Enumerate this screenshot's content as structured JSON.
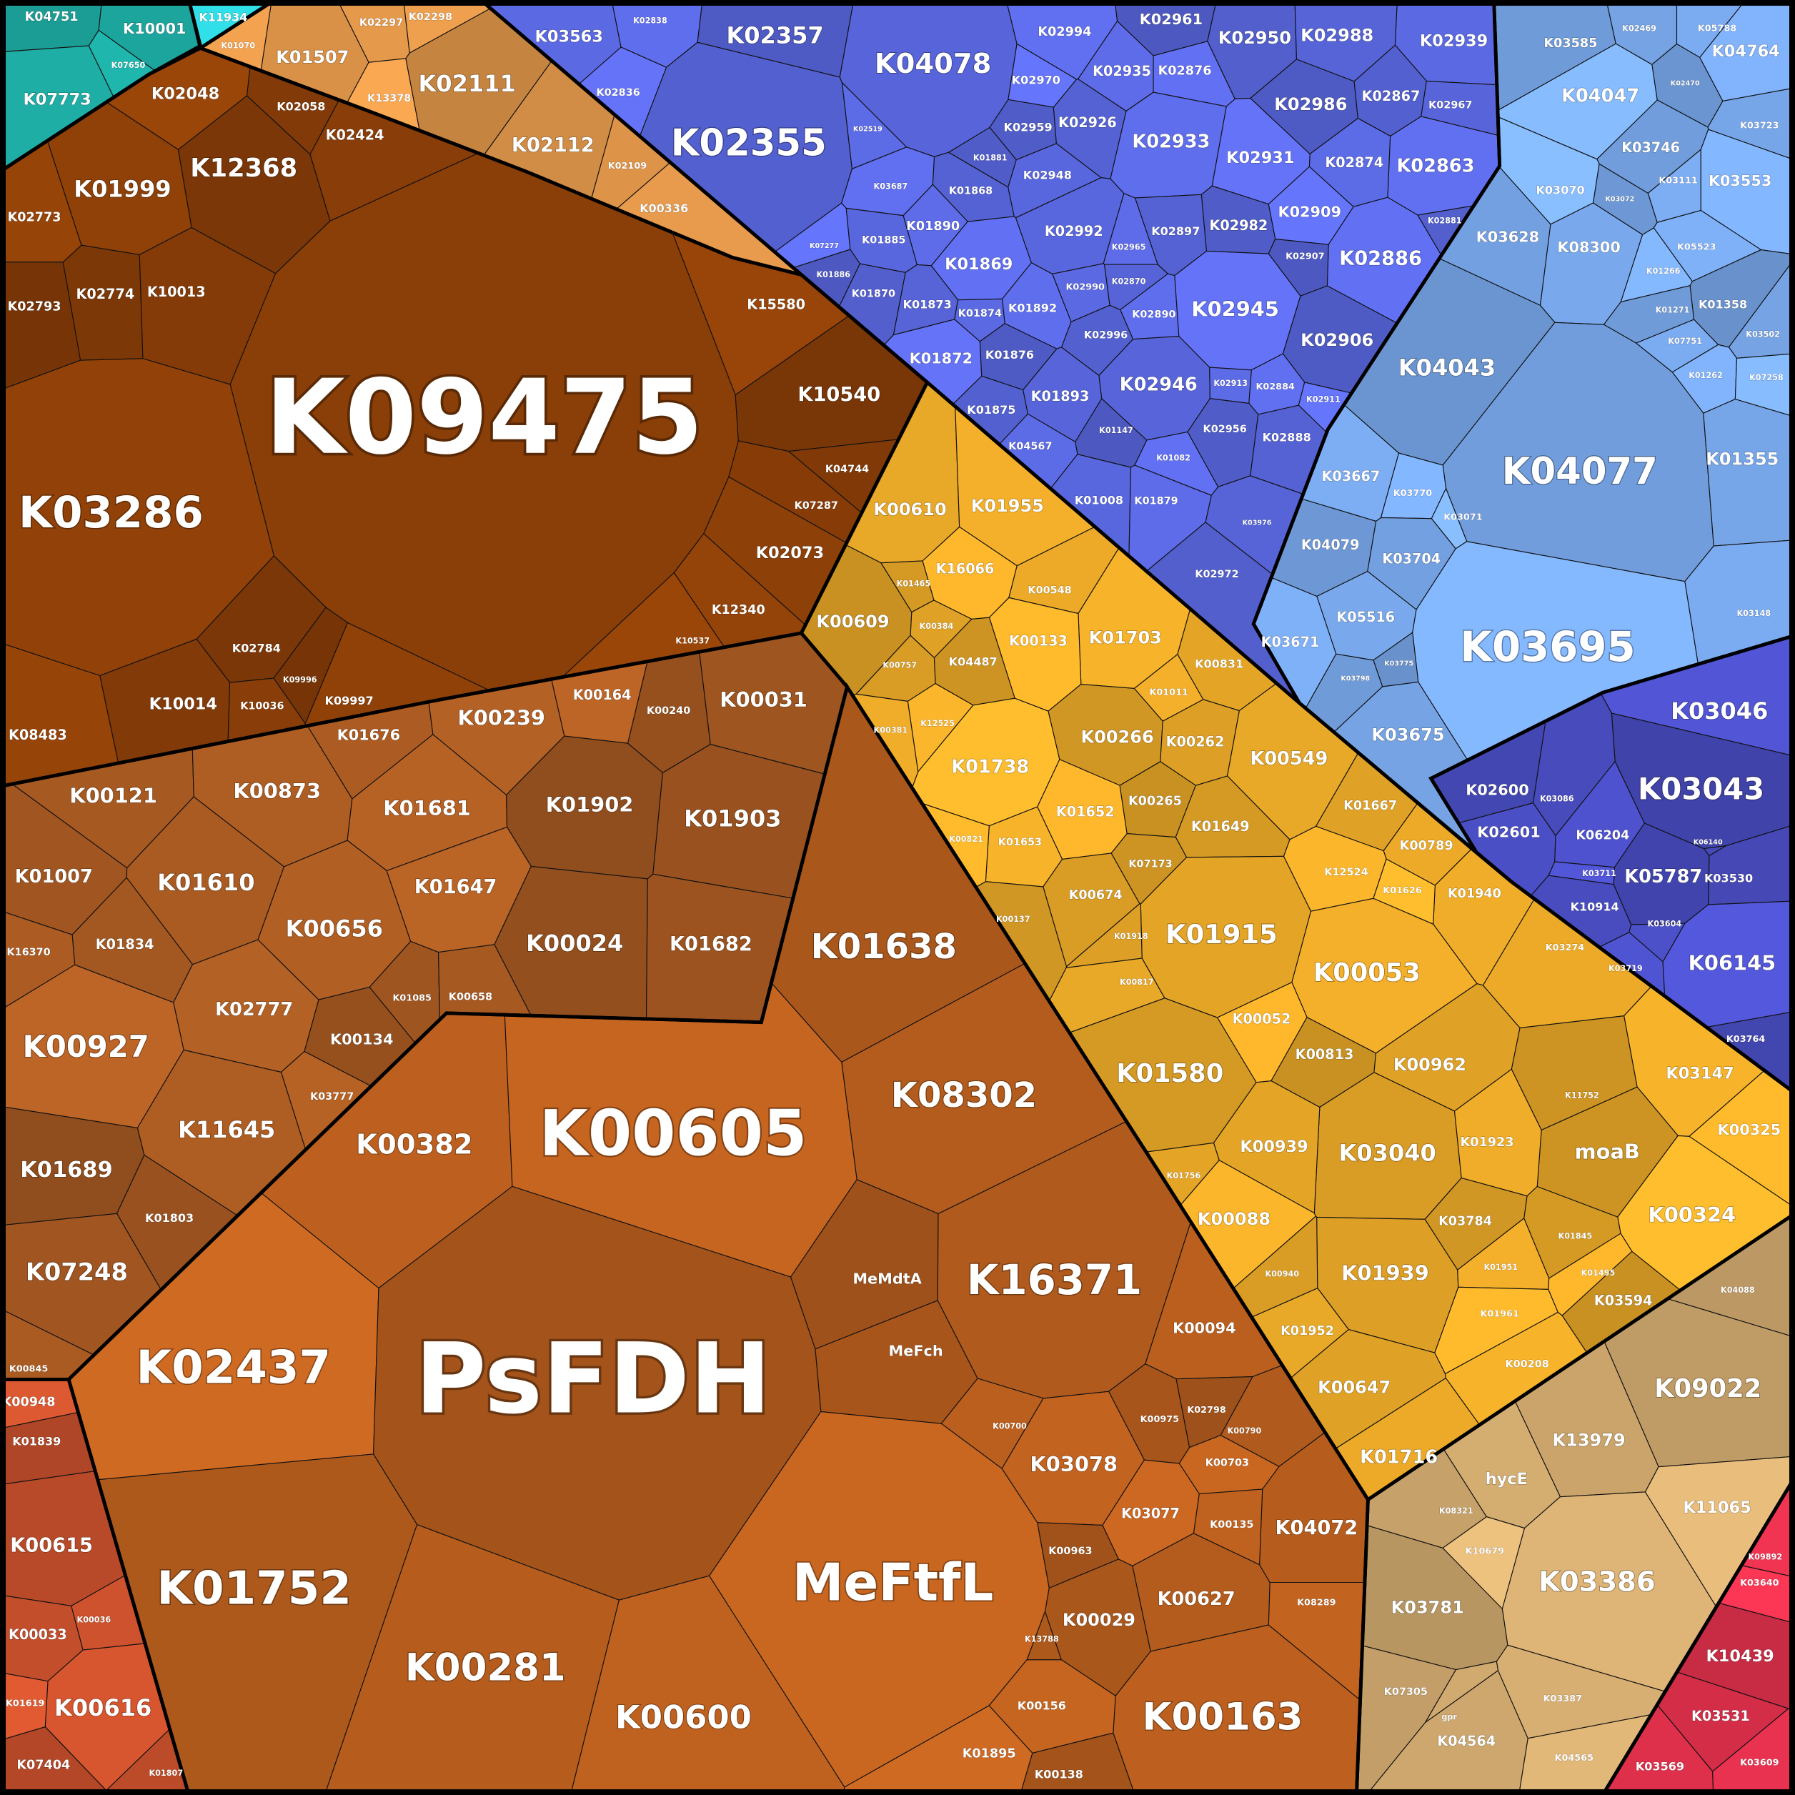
{
  "chart_data": {
    "type": "voronoi-treemap",
    "groups": [
      {
        "color": "#1fb5ac",
        "cells": [
          "K04751",
          "K10001",
          "K07773",
          "K07650"
        ]
      },
      {
        "color": "#2fd6e0",
        "cells": [
          "K11934"
        ]
      },
      {
        "color": "#e69a4c",
        "cells": [
          "K01507",
          "K02297",
          "K02298",
          "K13378",
          "K02111",
          "K02112",
          "K02109",
          "K00336",
          "K01070"
        ]
      },
      {
        "color": "#8a3e08",
        "cells": [
          "K02048",
          "K12368",
          "K02058",
          "K02424",
          "K01999",
          "K02773",
          "K02793",
          "K02774",
          "K10013",
          "K09475",
          "K03286",
          "K15580",
          "K10540",
          "K04744",
          "K07287",
          "K02073",
          "K12340",
          "K10537",
          "K02784",
          "K10014",
          "K10036",
          "K09997",
          "K08483",
          "K09996"
        ]
      },
      {
        "color": "#a85a22",
        "cells": [
          "K01676",
          "K00239",
          "K00164",
          "K00240",
          "K00031",
          "K00121",
          "K00873",
          "K01681",
          "K01902",
          "K01903",
          "K01007",
          "K01610",
          "K00656",
          "K01647",
          "K00024",
          "K01682",
          "K01834",
          "K16370",
          "K02777",
          "K00927",
          "K00134",
          "K01085",
          "K00658",
          "K11645",
          "K03777",
          "K01689",
          "K01803",
          "K07248",
          "K00845"
        ]
      },
      {
        "color": "#b85e1e",
        "cells": [
          "K01638",
          "K08302",
          "K00382",
          "K00605",
          "K02437",
          "PsFDH",
          "K01752",
          "K00281",
          "K00600",
          "MeFtfL",
          "MeMdtA",
          "MeFch",
          "K16371",
          "K00094",
          "K03078",
          "K03077",
          "K00963",
          "K00029",
          "K00627",
          "K00163",
          "K00156",
          "K01895",
          "K00138",
          "K13788",
          "K04072",
          "K00135",
          "K00703",
          "K02798",
          "K00975",
          "K00790",
          "K00700",
          "K08289"
        ]
      },
      {
        "color": "#c8502c",
        "cells": [
          "K00948",
          "K01839",
          "K00615",
          "K00033",
          "K00036",
          "K00616",
          "K01619",
          "K07404",
          "K01807"
        ]
      },
      {
        "color": "#5a68e0",
        "cells": [
          "K03563",
          "K02838",
          "K02836",
          "K02357",
          "K02355",
          "K04078",
          "K02519",
          "K03687",
          "K07277",
          "K01881",
          "K01868",
          "K01885",
          "K01890",
          "K01869",
          "K01886",
          "K01870",
          "K01873",
          "K01874",
          "K01892",
          "K01872",
          "K01876",
          "K01875",
          "K01893",
          "K04567",
          "K02994",
          "K02970",
          "K02959",
          "K02926",
          "K02948",
          "K02935",
          "K02876",
          "K02961",
          "K02950",
          "K02988",
          "K02939",
          "K02933",
          "K02931",
          "K02986",
          "K02867",
          "K02967",
          "K02874",
          "K02863",
          "K02909",
          "K02982",
          "K02897",
          "K02992",
          "K02965",
          "K02886",
          "K02907",
          "K02881",
          "K02870",
          "K02990",
          "K02890",
          "K02945",
          "K02906",
          "K02996",
          "K02946",
          "K02913",
          "K02884",
          "K02911",
          "K02956",
          "K02888",
          "K01008",
          "K01879",
          "K01082",
          "K01147",
          "K02972",
          "K03976"
        ]
      },
      {
        "color": "#7aaaee",
        "cells": [
          "K03585",
          "K02469",
          "K05788",
          "K04764",
          "K04047",
          "K02470",
          "K03746",
          "K03723",
          "K03111",
          "K03553",
          "K03070",
          "K03072",
          "K03628",
          "K08300",
          "K05523",
          "K01266",
          "K01358",
          "K01271",
          "K03502",
          "K07751",
          "K01262",
          "K07258",
          "K04043",
          "K04077",
          "K01355",
          "K03667",
          "K03770",
          "K03071",
          "K04079",
          "K03704",
          "K05516",
          "K03671",
          "K03695",
          "K03775",
          "K03798",
          "K03675",
          "K03148"
        ]
      },
      {
        "color": "#4a4ec4",
        "cells": [
          "K03046",
          "K03043",
          "K02600",
          "K03086",
          "K02601",
          "K06204",
          "K03711",
          "K05787",
          "K03530",
          "K10914",
          "K03604",
          "K03719",
          "K06145",
          "K03764",
          "K06140"
        ]
      },
      {
        "color": "#eaa928",
        "cells": [
          "K00610",
          "K01955",
          "K16066",
          "K00609",
          "K01465",
          "K00384",
          "K00548",
          "K01703",
          "K00133",
          "K04487",
          "K00757",
          "K00831",
          "K00381",
          "K12525",
          "K01738",
          "K00266",
          "K00262",
          "K00549",
          "K01011",
          "K01652",
          "K00265",
          "K01649",
          "K01667",
          "K00789",
          "K01653",
          "K00821",
          "K07173",
          "K00674",
          "K01915",
          "K01940",
          "K12524",
          "K01626",
          "K00137",
          "K01918",
          "K00817",
          "K00053",
          "K00052",
          "K00813",
          "K01580",
          "K00962",
          "K03274",
          "K03147",
          "K00325",
          "moaB",
          "K03040",
          "K00939",
          "K01923",
          "K00088",
          "K00324",
          "K03784",
          "K01939",
          "K01952",
          "K01951",
          "K01495",
          "K03594",
          "K01845",
          "K00647",
          "K01716",
          "K00208",
          "K01961",
          "K11752",
          "K00940",
          "K01756"
        ]
      },
      {
        "color": "#d6ae72",
        "cells": [
          "K09022",
          "K13979",
          "hycE",
          "K03386",
          "K11065",
          "K03781",
          "K07305",
          "K04564",
          "K03387",
          "K04565",
          "K10679",
          "K04088",
          "K08321",
          "gpr"
        ]
      },
      {
        "color": "#e0304c",
        "cells": [
          "K09892",
          "K03640",
          "K10439",
          "K03531",
          "K03569",
          "K03609"
        ]
      }
    ]
  }
}
